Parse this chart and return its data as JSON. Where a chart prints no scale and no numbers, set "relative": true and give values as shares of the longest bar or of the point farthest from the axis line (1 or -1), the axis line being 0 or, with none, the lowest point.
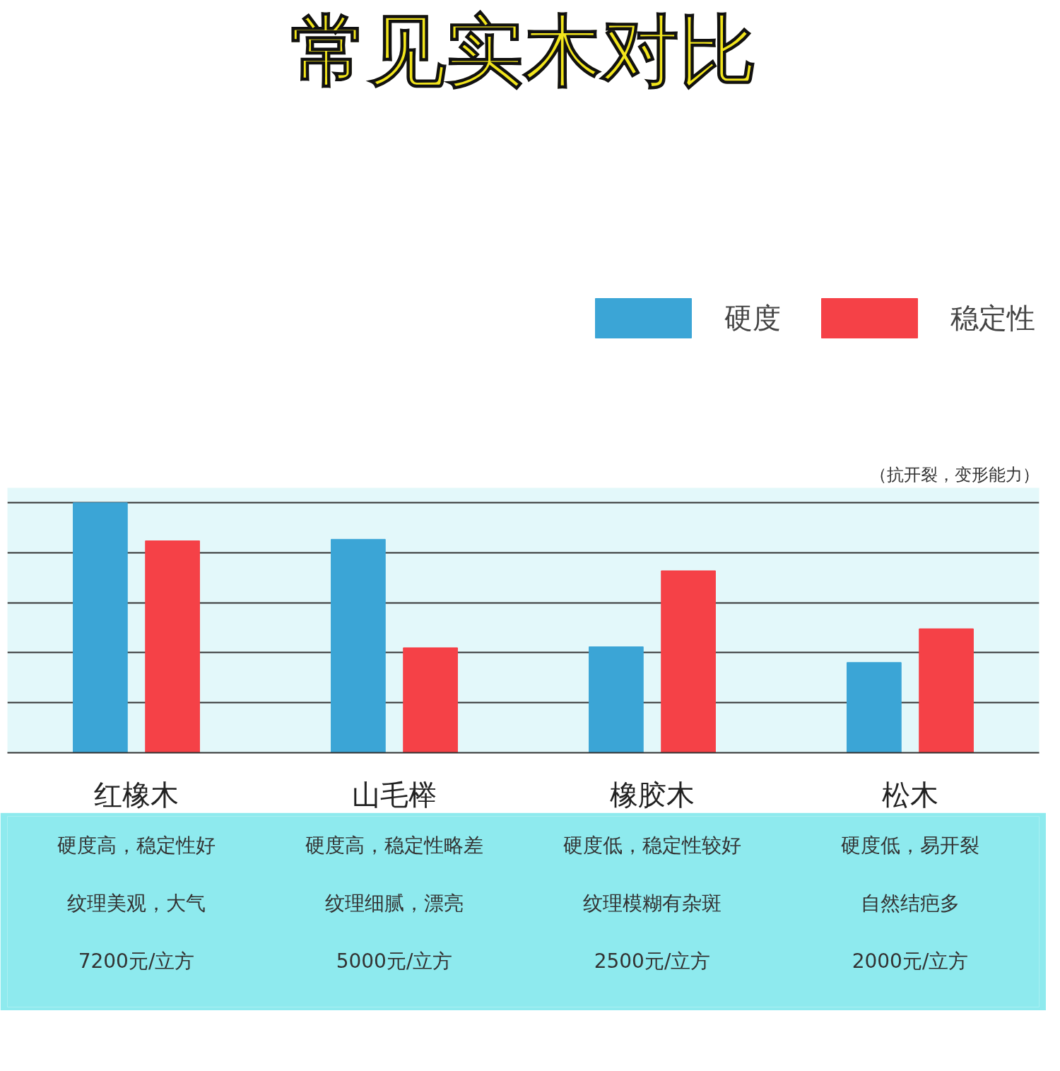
{
  "chart_data": {
    "type": "bar",
    "title": "常见实木对比",
    "relative": true,
    "grid": "y",
    "legend": "top right",
    "categories": [
      "红橡木",
      "山毛榉",
      "橡胶木",
      "松木"
    ],
    "series": [
      {
        "name": "硬度",
        "color": "#3ba5d6",
        "values": [
          1,
          0.854,
          0.424,
          0.361
        ]
      },
      {
        "name": "稳定性",
        "color": "#f54147",
        "values": [
          0.848,
          0.42,
          0.728,
          0.496
        ]
      }
    ],
    "annotations": [
      "（抗开裂，变形能力）",
      "硬度高，稳定性好",
      "纹理美观，大气",
      "7200元/立方",
      "硬度高，稳定性略差",
      "纹理细腻，漂亮",
      "5000元/立方",
      "硬度低，稳定性较好",
      "纹理模糊有杂斑",
      "2500元/立方",
      "硬度低，易开裂",
      "自然结疤多",
      "2000元/立方"
    ]
  }
}
